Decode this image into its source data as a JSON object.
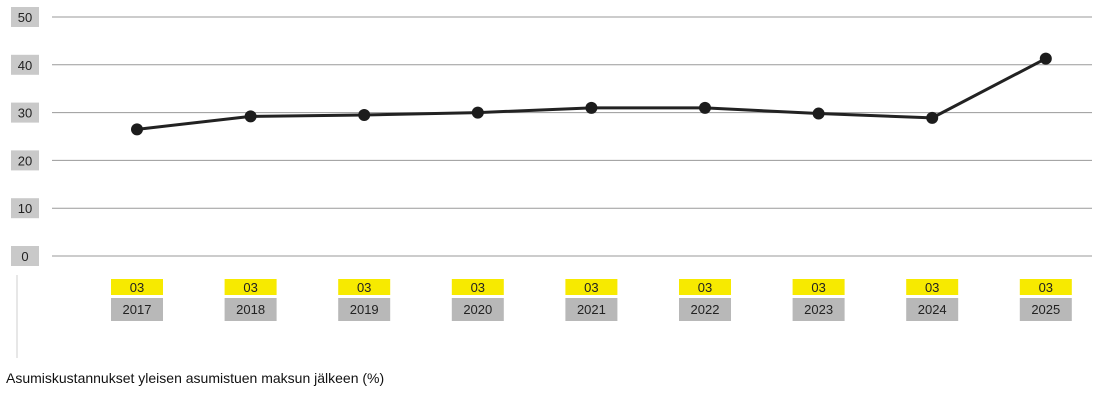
{
  "chart_data": {
    "type": "line",
    "title": "",
    "caption": "Asumiskustannukset yleisen asumistuen maksun jälkeen (%)",
    "ylim": [
      0,
      50
    ],
    "yticks": [
      "0",
      "10",
      "20",
      "30",
      "40",
      "50"
    ],
    "grid": true,
    "categories": [
      {
        "month": "03",
        "year": "2017"
      },
      {
        "month": "03",
        "year": "2018"
      },
      {
        "month": "03",
        "year": "2019"
      },
      {
        "month": "03",
        "year": "2020"
      },
      {
        "month": "03",
        "year": "2021"
      },
      {
        "month": "03",
        "year": "2022"
      },
      {
        "month": "03",
        "year": "2023"
      },
      {
        "month": "03",
        "year": "2024"
      },
      {
        "month": "03",
        "year": "2025"
      }
    ],
    "series": [
      {
        "values": [
          26.5,
          29.2,
          29.5,
          30.0,
          31.0,
          31.0,
          29.8,
          28.9,
          41.3
        ]
      }
    ],
    "colors": {
      "line": "#222222",
      "month_tag": "#f7ea00",
      "year_tag": "#b8b8b8",
      "ytick_tag": "#c9c9c9"
    }
  }
}
